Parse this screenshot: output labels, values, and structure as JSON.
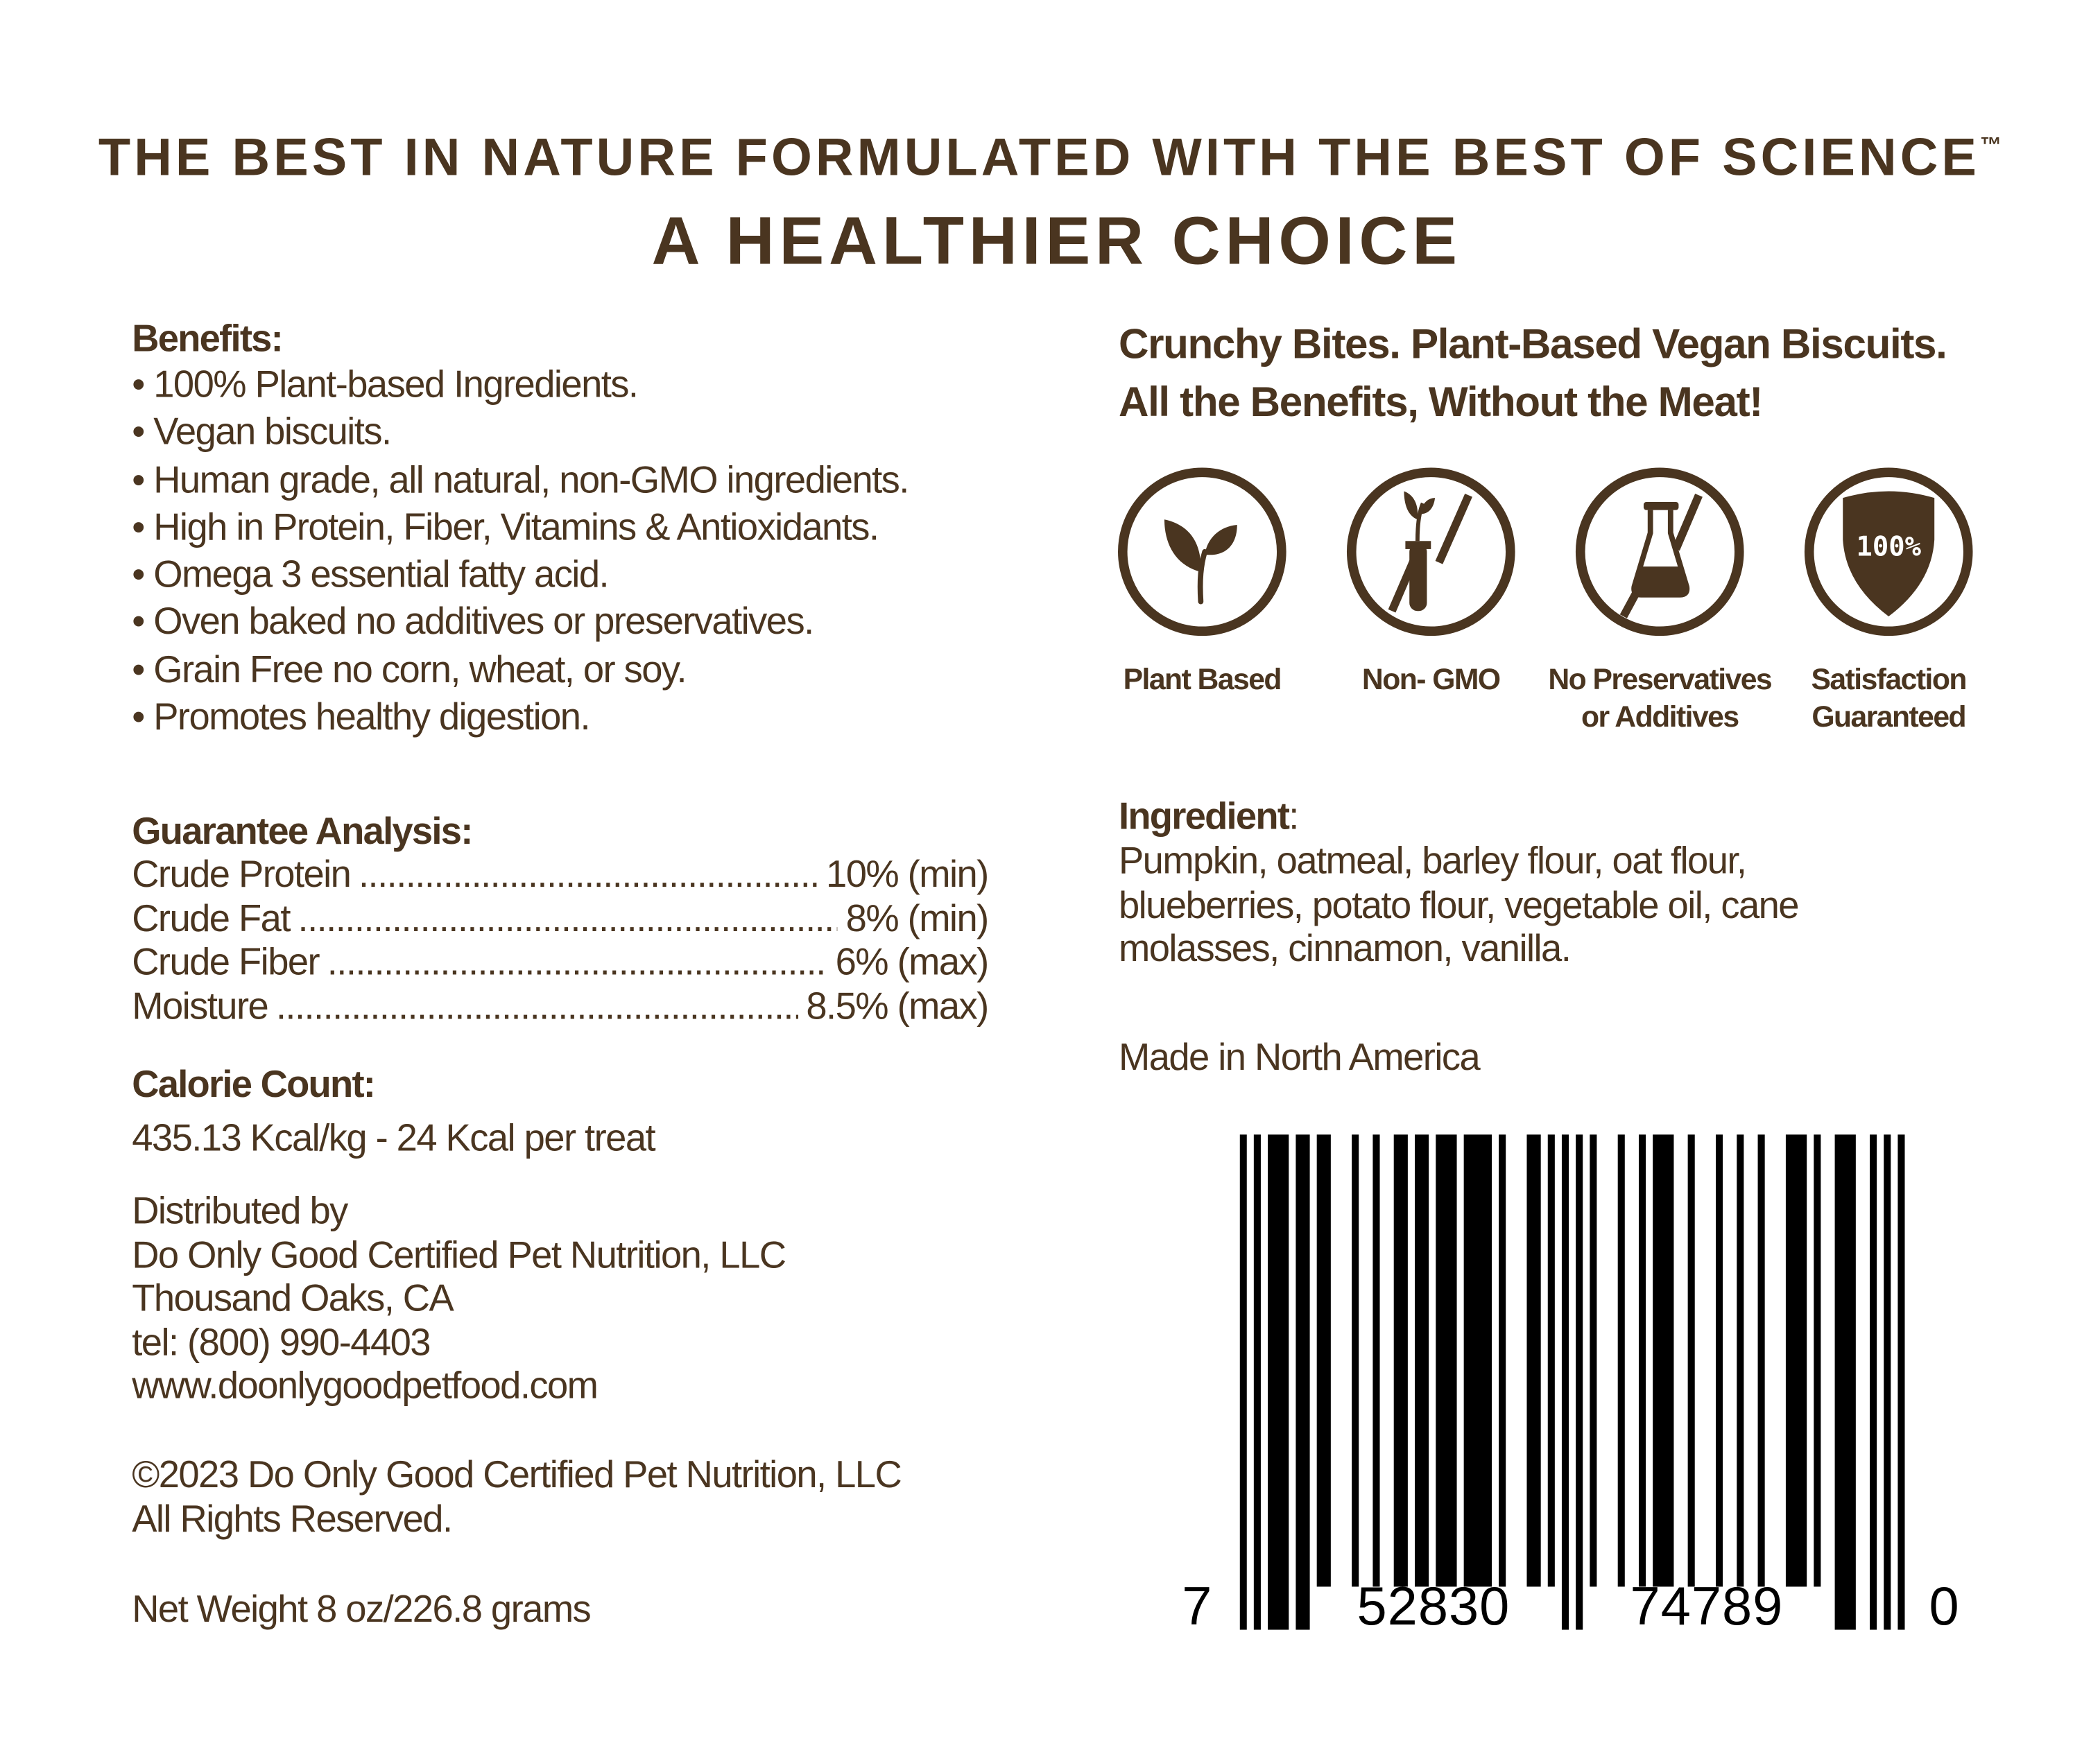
{
  "header": {
    "tagline": "THE BEST IN NATURE FORMULATED WITH THE BEST OF SCIENCE",
    "trademark": "™",
    "headline": "A HEALTHIER CHOICE"
  },
  "benefits": {
    "heading": "Benefits:",
    "items": [
      "• 100% Plant-based Ingredients.",
      "• Vegan biscuits.",
      "• Human grade, all natural, non-GMO ingredients.",
      "• High in Protein, Fiber, Vitamins & Antioxidants.",
      "• Omega 3 essential fatty acid.",
      "• Oven baked no additives or preservatives.",
      "• Grain Free no corn, wheat, or soy.",
      "• Promotes healthy digestion."
    ]
  },
  "guarantee": {
    "heading": "Guarantee Analysis:",
    "rows": [
      {
        "name": "Crude Protein",
        "value": "10% (min)"
      },
      {
        "name": "Crude Fat",
        "value": "8% (min)"
      },
      {
        "name": "Crude Fiber",
        "value": "6% (max)"
      },
      {
        "name": "Moisture",
        "value": "8.5% (max)"
      }
    ]
  },
  "calories": {
    "heading": "Calorie Count:",
    "value": "435.13 Kcal/kg - 24 Kcal per treat"
  },
  "distributor": {
    "lines": [
      "Distributed by",
      "Do Only Good Certified Pet Nutrition, LLC",
      "Thousand Oaks, CA",
      "tel: (800) 990-4403",
      "www.doonlygoodpetfood.com"
    ]
  },
  "copyright": {
    "lines": [
      "©2023 Do Only Good Certified Pet Nutrition, LLC",
      "All Rights Reserved."
    ]
  },
  "net_weight": "Net Weight 8 oz/226.8 grams",
  "product": {
    "line1": "Crunchy Bites. Plant-Based Vegan Biscuits.",
    "line2": "All the Benefits, Without the Meat!"
  },
  "badges": [
    {
      "icon": "sprout-icon",
      "label": "Plant Based"
    },
    {
      "icon": "no-gmo-test-tube-icon",
      "label": "Non- GMO"
    },
    {
      "icon": "no-flask-icon",
      "label": "No Preservatives",
      "label2": "or Additives"
    },
    {
      "icon": "shield-icon",
      "label": "Satisfaction",
      "label2": "Guaranteed",
      "shield_text": "100%"
    }
  ],
  "ingredients": {
    "heading": "Ingredient",
    "colon": ":",
    "lines": [
      "Pumpkin, oatmeal, barley flour, oat flour,",
      "blueberries, potato flour, vegetable oil, cane",
      "molasses, cinnamon, vanilla."
    ]
  },
  "origin": "Made in North America",
  "barcode": {
    "digits": "752830747890",
    "first": "7",
    "left": "52830",
    "right": "74789",
    "last": "0"
  },
  "colors": {
    "text": "#4a3520",
    "barcode": "#000000"
  }
}
